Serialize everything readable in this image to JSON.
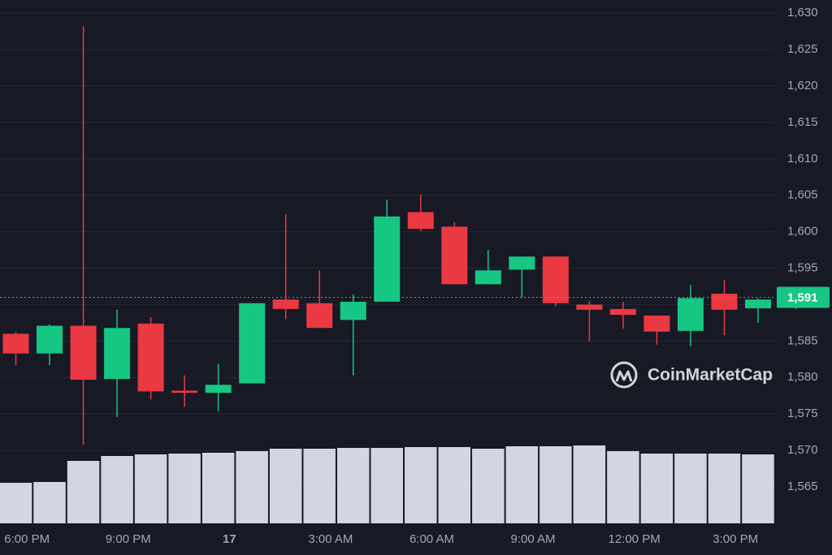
{
  "chart_data": {
    "type": "candlestick",
    "x": [
      -0.33,
      0.67,
      1.67,
      2.67,
      3.67,
      4.67,
      5.67,
      6.67,
      7.67,
      8.67,
      9.67,
      10.67,
      11.67,
      12.67,
      13.67,
      14.67,
      15.67,
      16.67,
      17.67,
      18.67,
      19.67,
      20.67,
      21.67
    ],
    "open": [
      1586.0,
      1583.3,
      1587.1,
      1579.8,
      1587.4,
      1578.2,
      1577.9,
      1579.2,
      1590.7,
      1590.2,
      1587.9,
      1590.4,
      1602.7,
      1600.7,
      1592.8,
      1594.8,
      1596.6,
      1590.0,
      1589.4,
      1588.5,
      1586.4,
      1591.5,
      1589.5
    ],
    "high": [
      1586.3,
      1587.3,
      1628.2,
      1589.3,
      1588.3,
      1580.3,
      1581.9,
      1590.2,
      1602.4,
      1594.7,
      1591.4,
      1604.4,
      1605.1,
      1601.3,
      1597.5,
      1596.6,
      1596.6,
      1590.5,
      1590.4,
      1588.5,
      1592.7,
      1593.4,
      1590.9
    ],
    "low": [
      1581.7,
      1581.7,
      1570.8,
      1574.6,
      1577.0,
      1576.0,
      1575.4,
      1579.2,
      1588.0,
      1586.8,
      1580.3,
      1590.4,
      1600.1,
      1592.8,
      1592.8,
      1591.0,
      1589.8,
      1585.0,
      1586.7,
      1584.5,
      1584.3,
      1585.8,
      1587.5
    ],
    "close": [
      1583.3,
      1587.1,
      1579.7,
      1586.8,
      1578.1,
      1577.9,
      1579.0,
      1590.2,
      1589.4,
      1586.8,
      1590.4,
      1602.1,
      1600.4,
      1592.8,
      1594.7,
      1596.6,
      1590.2,
      1589.3,
      1588.6,
      1586.3,
      1590.9,
      1589.3,
      1590.7
    ],
    "volume": [
      50,
      51,
      77,
      83,
      85,
      86,
      87,
      89,
      92,
      92,
      93,
      93,
      94,
      94,
      92,
      95,
      95,
      96,
      89,
      86,
      86,
      86,
      85
    ],
    "up_color": "#16c784",
    "down_color": "#ea3943",
    "volume_color": "#d1d6e1",
    "xlim": [
      -0.8,
      22.2
    ],
    "ylim": [
      1561.5,
      1631.8
    ],
    "xticks": [
      {
        "value": 0,
        "label": "6:00 PM"
      },
      {
        "value": 3,
        "label": "9:00 PM"
      },
      {
        "value": 6,
        "label": "17",
        "bold": true
      },
      {
        "value": 9,
        "label": "3:00 AM"
      },
      {
        "value": 12,
        "label": "6:00 AM"
      },
      {
        "value": 15,
        "label": "9:00 AM"
      },
      {
        "value": 18,
        "label": "12:00 PM"
      },
      {
        "value": 21,
        "label": "3:00 PM"
      }
    ],
    "yticks": [
      {
        "value": 1565,
        "label": "1,565"
      },
      {
        "value": 1570,
        "label": "1,570"
      },
      {
        "value": 1575,
        "label": "1,575"
      },
      {
        "value": 1580,
        "label": "1,580"
      },
      {
        "value": 1585,
        "label": "1,585"
      },
      {
        "value": 1590,
        "label": "1,590"
      },
      {
        "value": 1595,
        "label": "1,595"
      },
      {
        "value": 1600,
        "label": "1,600"
      },
      {
        "value": 1605,
        "label": "1,605"
      },
      {
        "value": 1610,
        "label": "1,610"
      },
      {
        "value": 1615,
        "label": "1,615"
      },
      {
        "value": 1620,
        "label": "1,620"
      },
      {
        "value": 1625,
        "label": "1,625"
      },
      {
        "value": 1630,
        "label": "1,630"
      }
    ],
    "grid": true,
    "last_price": {
      "value": 1591,
      "label": "1,591"
    },
    "watermark": "CoinMarketCap"
  }
}
